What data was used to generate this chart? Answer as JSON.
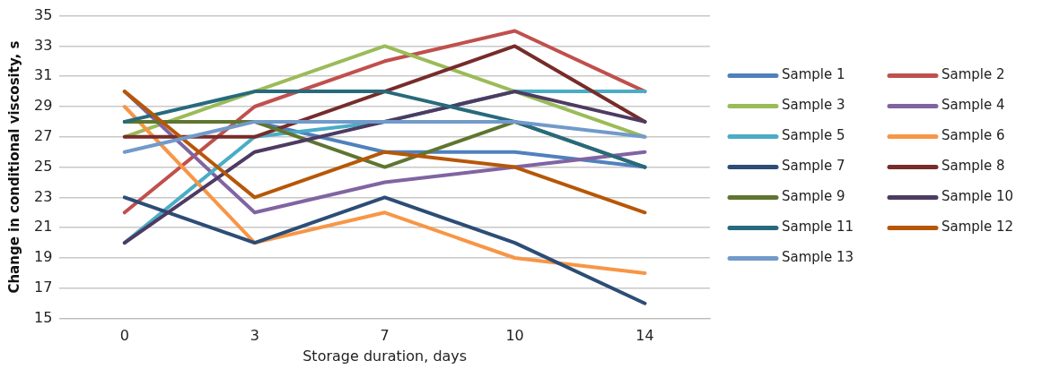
{
  "chart_data": {
    "type": "line",
    "xlabel": "Storage duration, days",
    "ylabel": "Change in conditional viscosity, s",
    "categories": [
      "0",
      "3",
      "7",
      "10",
      "14"
    ],
    "series": [
      {
        "name": "Sample 1",
        "color": "#4f81bd",
        "values": [
          28,
          28,
          26,
          26,
          25
        ]
      },
      {
        "name": "Sample 2",
        "color": "#c0504d",
        "values": [
          22,
          29,
          32,
          34,
          30
        ]
      },
      {
        "name": "Sample 3",
        "color": "#9bbb59",
        "values": [
          27,
          30,
          33,
          30,
          27
        ]
      },
      {
        "name": "Sample 4",
        "color": "#8064a2",
        "values": [
          30,
          22,
          24,
          25,
          26
        ]
      },
      {
        "name": "Sample 5",
        "color": "#4bacc6",
        "values": [
          20,
          27,
          28,
          30,
          30
        ]
      },
      {
        "name": "Sample 6",
        "color": "#f79646",
        "values": [
          29,
          20,
          22,
          19,
          18
        ]
      },
      {
        "name": "Sample 7",
        "color": "#2c4d75",
        "values": [
          23,
          20,
          23,
          20,
          16
        ]
      },
      {
        "name": "Sample 8",
        "color": "#772c2a",
        "values": [
          27,
          27,
          30,
          33,
          28
        ]
      },
      {
        "name": "Sample 9",
        "color": "#5f7530",
        "values": [
          28,
          28,
          25,
          28,
          25
        ]
      },
      {
        "name": "Sample 10",
        "color": "#4d3b62",
        "values": [
          20,
          26,
          28,
          30,
          28
        ]
      },
      {
        "name": "Sample 11",
        "color": "#276a7c",
        "values": [
          28,
          30,
          30,
          28,
          25
        ]
      },
      {
        "name": "Sample 12",
        "color": "#b65708",
        "values": [
          30,
          23,
          26,
          25,
          22
        ]
      },
      {
        "name": "Sample 13",
        "color": "#729aca",
        "values": [
          26,
          28,
          28,
          28,
          27
        ]
      }
    ],
    "ylim": [
      15,
      35
    ],
    "yticks": [
      15,
      17,
      19,
      21,
      23,
      25,
      27,
      29,
      31,
      33,
      35
    ],
    "grid": "y",
    "legend": "right",
    "marker": "none",
    "line_style": "solid"
  }
}
